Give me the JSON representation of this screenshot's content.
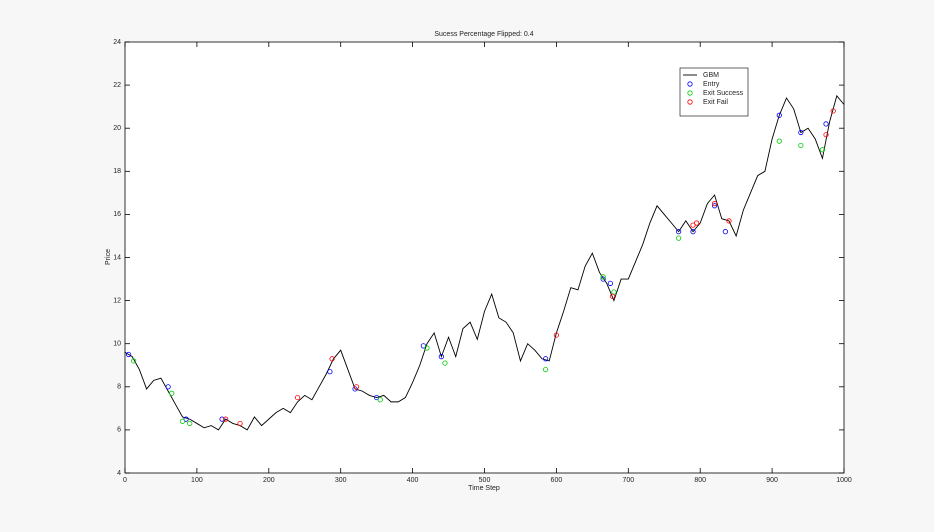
{
  "chart_data": {
    "type": "line",
    "title": "Sucess Percentage Flipped: 0.4",
    "xlabel": "Time Step",
    "ylabel": "Price",
    "xlim": [
      0,
      1000
    ],
    "ylim": [
      4,
      24
    ],
    "xticks": [
      0,
      100,
      200,
      300,
      400,
      500,
      600,
      700,
      800,
      900,
      1000
    ],
    "yticks": [
      4,
      6,
      8,
      10,
      12,
      14,
      16,
      18,
      20,
      22,
      24
    ],
    "legend": "northeast",
    "series": [
      {
        "name": "GBM",
        "color": "#000000",
        "marker": "none",
        "x": [
          0,
          10,
          20,
          30,
          40,
          50,
          60,
          70,
          80,
          90,
          100,
          110,
          120,
          130,
          140,
          150,
          160,
          170,
          180,
          190,
          200,
          210,
          220,
          230,
          240,
          250,
          260,
          270,
          280,
          290,
          300,
          310,
          320,
          330,
          340,
          350,
          360,
          370,
          380,
          390,
          400,
          410,
          420,
          430,
          440,
          450,
          460,
          470,
          480,
          490,
          500,
          510,
          520,
          530,
          540,
          550,
          560,
          570,
          580,
          590,
          600,
          610,
          620,
          630,
          640,
          650,
          660,
          670,
          680,
          690,
          700,
          710,
          720,
          730,
          740,
          750,
          760,
          770,
          780,
          790,
          800,
          810,
          820,
          830,
          840,
          850,
          860,
          870,
          880,
          890,
          900,
          910,
          920,
          930,
          940,
          950,
          960,
          970,
          980,
          990,
          1000
        ],
        "values": [
          9.6,
          9.4,
          8.8,
          7.9,
          8.3,
          8.4,
          7.8,
          7.2,
          6.6,
          6.5,
          6.3,
          6.1,
          6.2,
          6.0,
          6.5,
          6.3,
          6.2,
          6.0,
          6.6,
          6.2,
          6.5,
          6.8,
          7.0,
          6.8,
          7.3,
          7.6,
          7.4,
          8.0,
          8.6,
          9.3,
          9.7,
          8.8,
          7.9,
          7.8,
          7.6,
          7.5,
          7.6,
          7.3,
          7.3,
          7.5,
          8.2,
          9.0,
          10.0,
          10.5,
          9.4,
          10.3,
          9.4,
          10.7,
          11.0,
          10.2,
          11.5,
          12.3,
          11.2,
          11.0,
          10.5,
          9.2,
          10.0,
          9.7,
          9.3,
          9.2,
          10.5,
          11.5,
          12.6,
          12.5,
          13.6,
          14.2,
          13.3,
          12.8,
          12.0,
          13.0,
          13.0,
          13.8,
          14.6,
          15.6,
          16.4,
          16.0,
          15.6,
          15.2,
          15.7,
          15.2,
          15.6,
          16.5,
          16.9,
          15.8,
          15.7,
          15.0,
          16.2,
          17.0,
          17.8,
          18.0,
          19.5,
          20.6,
          21.4,
          20.9,
          19.8,
          20.0,
          19.5,
          18.6,
          20.3,
          21.5,
          21.1
        ]
      },
      {
        "name": "Entry",
        "color": "#0000ff",
        "marker": "o",
        "x": [
          5,
          60,
          85,
          135,
          285,
          320,
          350,
          415,
          440,
          585,
          665,
          675,
          770,
          790,
          820,
          835,
          910,
          940,
          975
        ],
        "values": [
          9.5,
          8.0,
          6.5,
          6.5,
          8.7,
          7.9,
          7.5,
          9.9,
          9.4,
          9.3,
          13.0,
          12.8,
          15.2,
          15.2,
          16.4,
          15.2,
          20.6,
          19.8,
          20.2
        ]
      },
      {
        "name": "Exit Success",
        "color": "#00cc00",
        "marker": "o",
        "x": [
          12,
          65,
          80,
          90,
          355,
          420,
          445,
          585,
          665,
          680,
          770,
          910,
          940,
          970
        ],
        "values": [
          9.2,
          7.7,
          6.4,
          6.3,
          7.4,
          9.8,
          9.1,
          8.8,
          13.1,
          12.4,
          14.9,
          19.4,
          19.2,
          19.0
        ]
      },
      {
        "name": "Exit Fail",
        "color": "#ff0000",
        "marker": "o",
        "x": [
          140,
          160,
          240,
          288,
          322,
          600,
          678,
          790,
          795,
          820,
          840,
          975,
          985
        ],
        "values": [
          6.5,
          6.3,
          7.5,
          9.3,
          8.0,
          10.4,
          12.2,
          15.5,
          15.6,
          16.5,
          15.7,
          19.7,
          20.8
        ]
      }
    ]
  }
}
